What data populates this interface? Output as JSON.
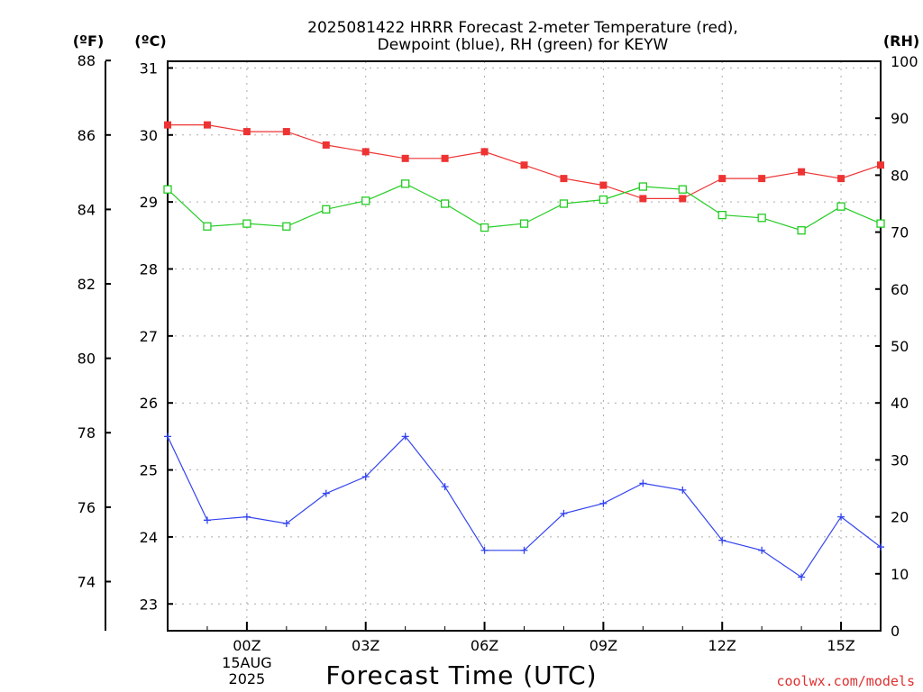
{
  "chart_data": {
    "type": "line",
    "title_lines": [
      "2025081422 HRRR Forecast 2-meter Temperature (red),",
      "Dewpoint (blue), RH (green) for KEYW"
    ],
    "xlabel": "Forecast Time (UTC)",
    "credit": "coolwx.com/models",
    "left_outer_unit": "(ºF)",
    "left_inner_unit": "(ºC)",
    "right_unit": "(RH)",
    "x_hours": [
      -2,
      -1,
      0,
      1,
      2,
      3,
      4,
      5,
      6,
      7,
      8,
      9,
      10,
      11,
      12,
      13,
      14,
      15,
      16
    ],
    "x_ticks": [
      {
        "hour": 0,
        "label": "00Z",
        "sub": [
          "15AUG",
          "2025"
        ]
      },
      {
        "hour": 3,
        "label": "03Z"
      },
      {
        "hour": 6,
        "label": "06Z"
      },
      {
        "hour": 9,
        "label": "09Z"
      },
      {
        "hour": 12,
        "label": "12Z"
      },
      {
        "hour": 15,
        "label": "15Z"
      }
    ],
    "celsius_axis": {
      "range": [
        22.6,
        31.1
      ],
      "ticks": [
        23,
        24,
        25,
        26,
        27,
        28,
        29,
        30,
        31
      ]
    },
    "fahrenheit_axis": {
      "ticks": [
        74,
        76,
        78,
        80,
        82,
        84,
        86,
        88
      ]
    },
    "rh_axis": {
      "range": [
        0,
        100
      ],
      "ticks": [
        0,
        10,
        20,
        30,
        40,
        50,
        60,
        70,
        80,
        90,
        100
      ]
    },
    "series": [
      {
        "name": "Temperature",
        "axis": "celsius",
        "color": "#ee3333",
        "marker": "filled-square",
        "values": [
          30.15,
          30.15,
          30.05,
          30.05,
          29.85,
          29.75,
          29.65,
          29.65,
          29.75,
          29.55,
          29.35,
          29.25,
          29.05,
          29.05,
          29.35,
          29.35,
          29.45,
          29.35,
          29.55
        ]
      },
      {
        "name": "Dewpoint",
        "axis": "celsius",
        "color": "#3344ee",
        "marker": "plus",
        "values": [
          25.5,
          24.25,
          24.3,
          24.2,
          24.65,
          24.9,
          25.5,
          24.75,
          23.8,
          23.8,
          24.35,
          24.5,
          24.8,
          24.7,
          23.95,
          23.8,
          23.4,
          24.3,
          23.85
        ]
      },
      {
        "name": "RH",
        "axis": "rh",
        "color": "#22cc22",
        "marker": "open-square",
        "values": [
          77.5,
          71,
          71.5,
          71,
          74,
          75.5,
          78.5,
          75,
          70.8,
          71.5,
          75,
          75.7,
          78,
          77.5,
          73,
          72.5,
          70.3,
          74.5,
          71.5
        ]
      }
    ]
  }
}
